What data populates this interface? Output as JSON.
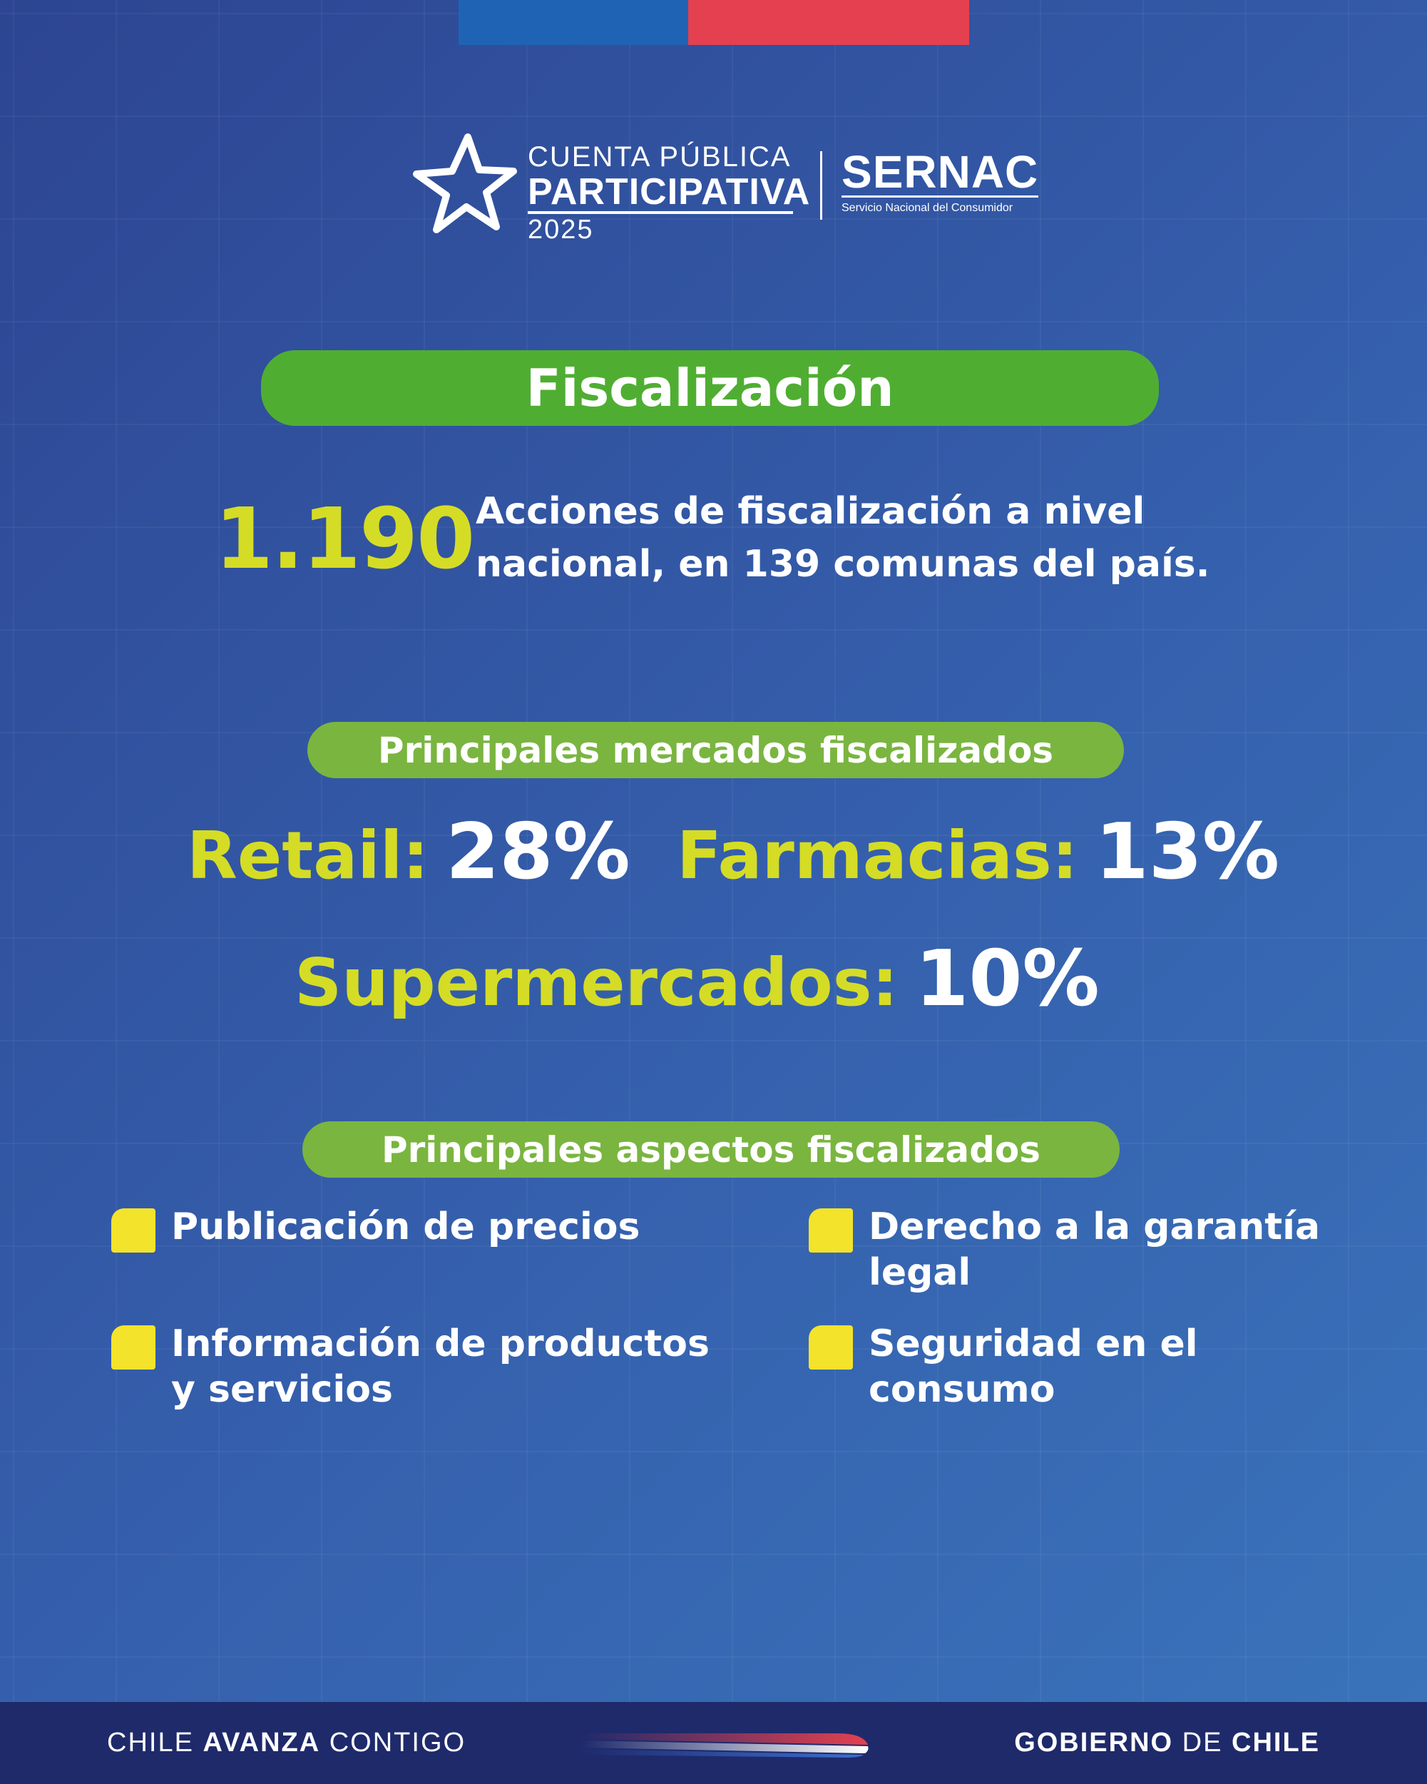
{
  "logo": {
    "program_line1": "CUENTA PÚBLICA",
    "program_line2": "PARTICIPATIVA",
    "program_year": "2025",
    "org_name": "SERNAC",
    "org_subtitle": "Servicio Nacional del Consumidor"
  },
  "title": "Fiscalización",
  "headline_stat": {
    "value": "1.190",
    "description": "Acciones de fiscalización a nivel nacional, en 139 comunas del país."
  },
  "markets": {
    "heading": "Principales mercados fiscalizados",
    "items": [
      {
        "label": "Retail:",
        "value": "28%"
      },
      {
        "label": "Farmacias:",
        "value": "13%"
      },
      {
        "label": "Supermercados:",
        "value": "10%"
      }
    ]
  },
  "aspects": {
    "heading": "Principales aspectos fiscalizados",
    "items": [
      "Publicación de precios",
      "Información de productos y servicios",
      "Derecho a la garantía legal",
      "Seguridad en el consumo"
    ]
  },
  "footer": {
    "left_part1": "CHILE ",
    "left_part2": "AVANZA",
    "left_part3": " CONTIGO",
    "right_part1": "GOBIERNO",
    "right_part2": " DE ",
    "right_part3": "CHILE"
  },
  "colors": {
    "background": "#3560ad",
    "accent_green": "#4fae32",
    "pill_green": "#7ab540",
    "accent_yellow": "#d5dc26",
    "bullet_yellow": "#f3e32a",
    "flag_blue": "#1f64b4",
    "flag_red": "#e5404f",
    "footer_bg": "#1f2a6b"
  }
}
